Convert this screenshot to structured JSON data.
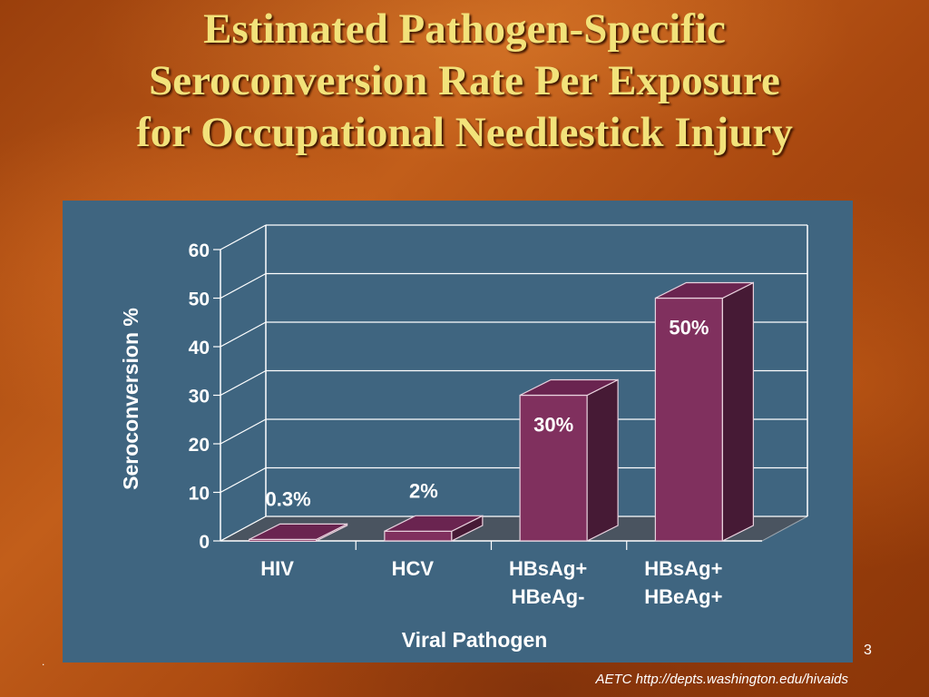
{
  "slide": {
    "title_lines": [
      "Estimated Pathogen-Specific",
      "Seroconversion Rate Per Exposure",
      "for Occupational Needlestick Injury"
    ],
    "slide_number": "3",
    "bullet": ".",
    "source": "AETC http://depts.washington.edu/hivaids"
  },
  "colors": {
    "panel_bg": "#3f6580",
    "bar_front": "#80305e",
    "bar_top": "#6a2450",
    "bar_side": "#461a35",
    "axis_text": "#ffffff",
    "title_text": "#f2e27a"
  },
  "chart_data": {
    "type": "bar",
    "style": "3d",
    "xlabel": "Viral Pathogen",
    "ylabel": "Seroconversion %",
    "ylim": [
      0,
      60
    ],
    "yticks": [
      "0",
      "10",
      "20",
      "30",
      "40",
      "50",
      "60"
    ],
    "grid": true,
    "categories": [
      [
        "HIV"
      ],
      [
        "HCV"
      ],
      [
        "HBsAg+",
        "HBeAg-"
      ],
      [
        "HBsAg+",
        "HBeAg+"
      ]
    ],
    "values": [
      0.3,
      2,
      30,
      50
    ],
    "data_labels": [
      "0.3%",
      "2%",
      "30%",
      "50%"
    ]
  }
}
